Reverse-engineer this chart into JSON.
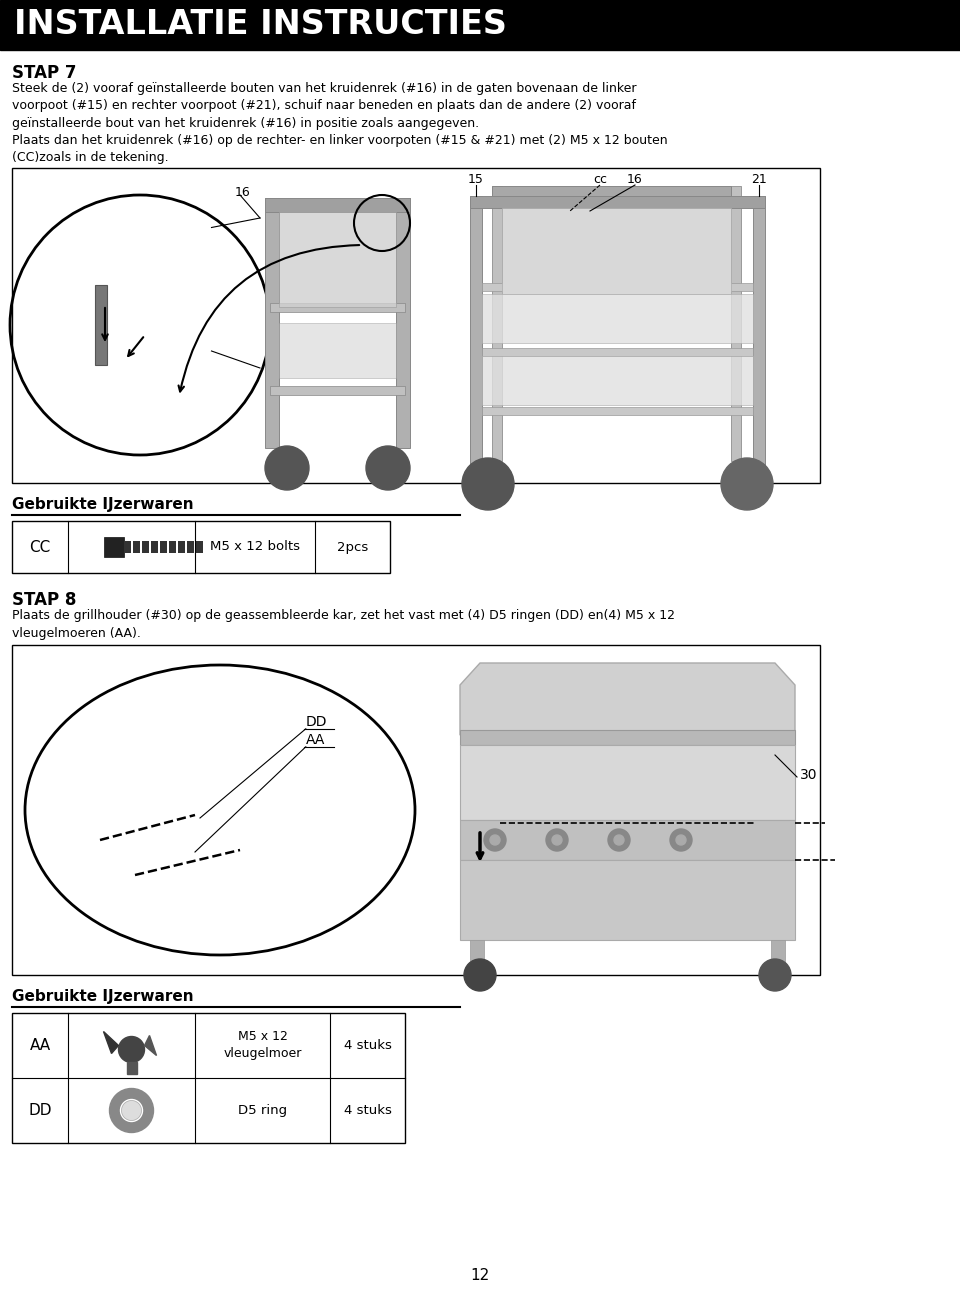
{
  "header_text": "INSTALLATIE INSTRUCTIES",
  "header_bg": "#000000",
  "header_text_color": "#ffffff",
  "page_bg": "#ffffff",
  "stap7_title": "STAP 7",
  "stap7_body": "Steek de (2) vooraf geïnstalleerde bouten van het kruidenrek (#16) in de gaten bovenaan de linker\nvoorpoot (#15) en rechter voorpoot (#21), schuif naar beneden en plaats dan de andere (2) vooraf\ngeïnstalleerde bout van het kruidenrek (#16) in positie zoals aangegeven.",
  "stap7_body2": "Plaats dan het kruidenrek (#16) op de rechter- en linker voorpoten (#15 & #21) met (2) M5 x 12 bouten\n(CC)zoals in de tekening.",
  "hardware1_title": "Gebruikte IJzerwaren",
  "hardware1_row": [
    "CC",
    "M5 x 12 bolts",
    "2pcs"
  ],
  "stap8_title": "STAP 8",
  "stap8_body": "Plaats de grillhouder (#30) op de geassembleerde kar, zet het vast met (4) D5 ringen (DD) en(4) M5 x 12\nvleugelmoeren (AA).",
  "hardware2_title": "Gebruikte IJzerwaren",
  "hardware2_rows": [
    [
      "AA",
      "M5 x 12\nvleugelmoer",
      "4 stuks"
    ],
    [
      "DD",
      "D5 ring",
      "4 stuks"
    ]
  ],
  "page_number": "12"
}
